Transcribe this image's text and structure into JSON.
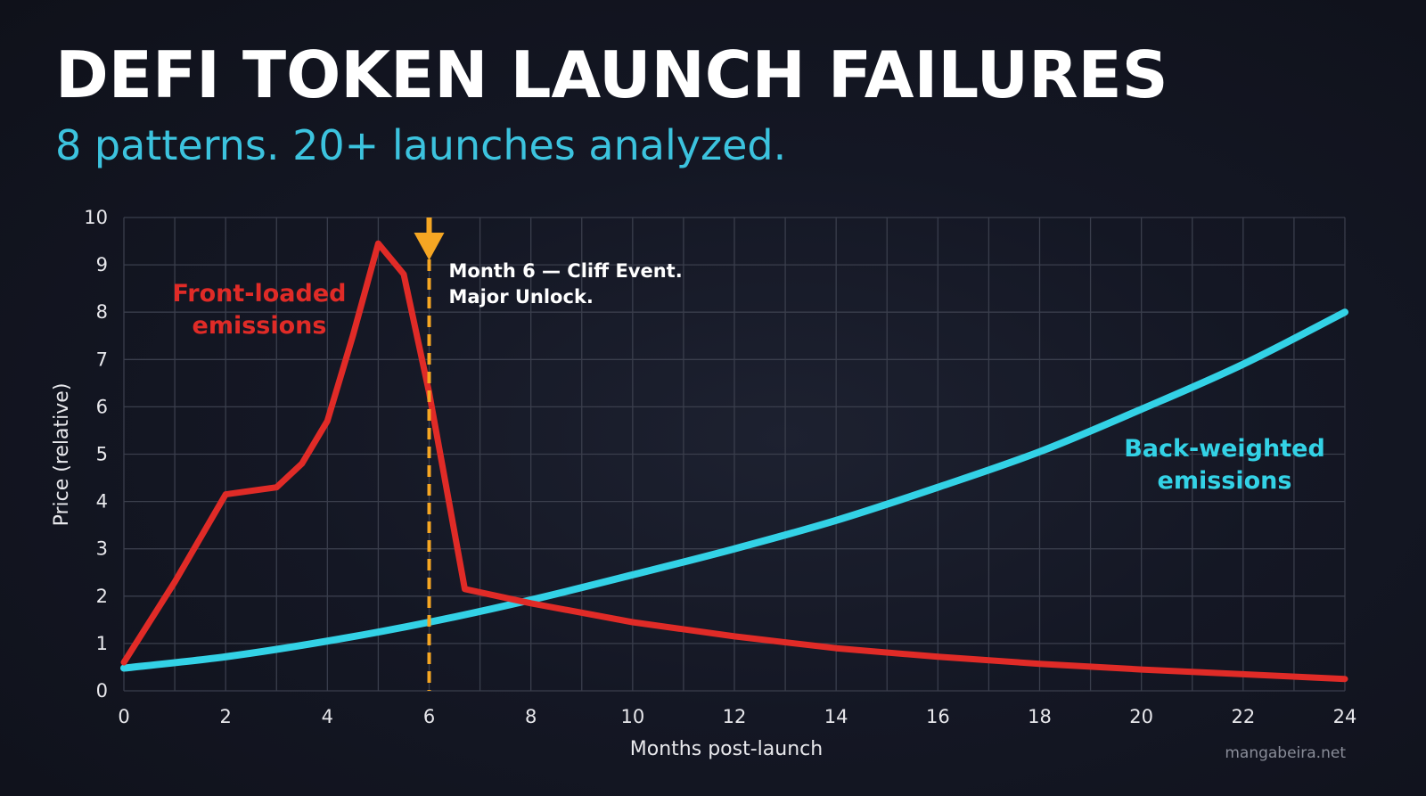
{
  "header": {
    "title": "DEFI TOKEN LAUNCH FAILURES",
    "subtitle": "8 patterns. 20+ launches analyzed."
  },
  "credit": "mangabeira.net",
  "colors": {
    "background": "#12141f",
    "title": "#ffffff",
    "subtitle": "#3cc3de",
    "front_loaded": "#e02b27",
    "back_weighted": "#33d2e6",
    "cliff_marker": "#f5a623",
    "grid": "#3a3e4c"
  },
  "chart_data": {
    "type": "line",
    "xlabel": "Months post-launch",
    "ylabel": "Price (relative)",
    "xlim": [
      0,
      24
    ],
    "ylim": [
      0,
      10
    ],
    "x_ticks": [
      0,
      2,
      4,
      6,
      8,
      10,
      12,
      14,
      16,
      18,
      20,
      22,
      24
    ],
    "y_ticks": [
      0,
      1,
      2,
      3,
      4,
      5,
      6,
      7,
      8,
      9,
      10
    ],
    "grid": true,
    "series": [
      {
        "name": "Front-loaded\nemissions",
        "label_lines": [
          "Front-loaded",
          "emissions"
        ],
        "color": "#e02b27",
        "x": [
          0,
          1,
          2,
          3,
          3.5,
          4,
          4.5,
          5,
          5.5,
          6,
          6.7,
          8,
          10,
          12,
          14,
          16,
          18,
          20,
          22,
          24
        ],
        "y": [
          0.6,
          2.3,
          4.15,
          4.3,
          4.8,
          5.7,
          7.5,
          9.45,
          8.8,
          6.3,
          2.15,
          1.85,
          1.45,
          1.15,
          0.9,
          0.72,
          0.57,
          0.45,
          0.35,
          0.25
        ]
      },
      {
        "name": "Back-weighted\nemissions",
        "label_lines": [
          "Back-weighted",
          "emissions"
        ],
        "color": "#33d2e6",
        "x": [
          0,
          2,
          4,
          6,
          8,
          10,
          12,
          14,
          16,
          18,
          20,
          22,
          24
        ],
        "y": [
          0.48,
          0.72,
          1.05,
          1.45,
          1.92,
          2.45,
          3.0,
          3.6,
          4.3,
          5.05,
          5.95,
          6.9,
          8.0
        ]
      }
    ],
    "annotations": [
      {
        "x": 6,
        "type": "vertical-dashed-line-with-arrow",
        "color": "#f5a623",
        "text_lines": [
          "Month 6 — Cliff Event.",
          "Major Unlock."
        ]
      }
    ]
  }
}
